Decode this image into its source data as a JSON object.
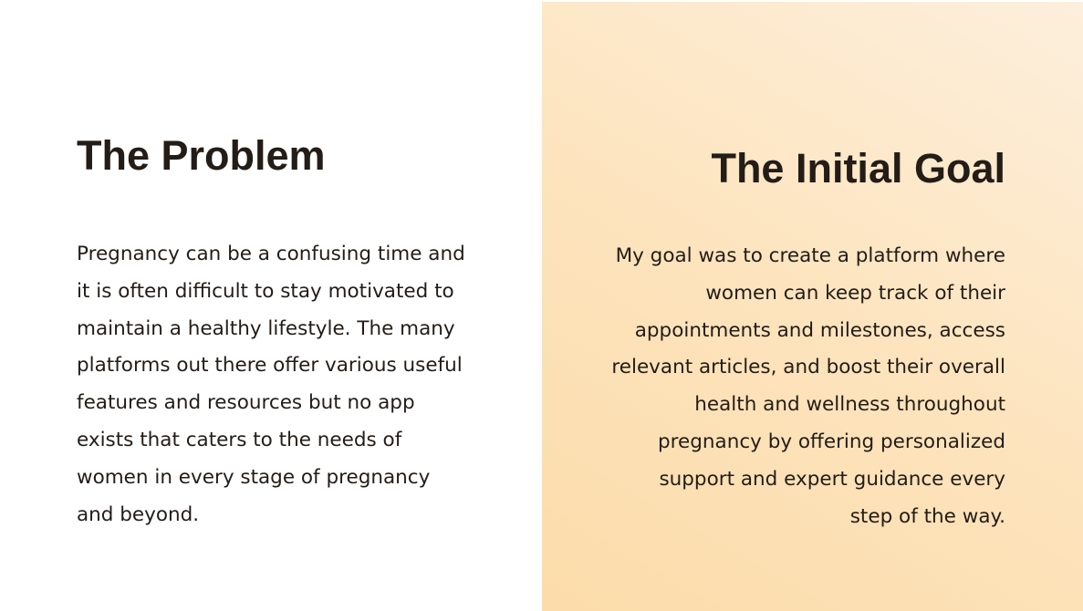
{
  "problem": {
    "title": "The Problem",
    "lines": [
      "Pregnancy can be a confusing time and",
      "it is often difficult to stay motivated to",
      "maintain a healthy lifestyle. The many",
      "platforms out there offer various useful",
      "features and resources but no app",
      "exists that caters to the needs of",
      "women in every stage of pregnancy",
      "and beyond."
    ]
  },
  "goal": {
    "title": "The Initial Goal",
    "lines": [
      "My goal was to create a platform where",
      "women can keep track of their",
      "appointments and milestones, access",
      "relevant articles, and boost their overall",
      "health and wellness throughout",
      "pregnancy by offering personalized",
      "support and expert guidance every",
      "step of the way."
    ]
  },
  "colors": {
    "text": "#231c17",
    "left_background": "#ffffff",
    "right_background_from": "#fcdcaa",
    "right_background_to": "#fdefdc"
  }
}
